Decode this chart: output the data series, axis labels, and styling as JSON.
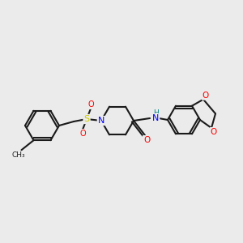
{
  "bg_color": "#ebebeb",
  "bond_color": "#1a1a1a",
  "bond_width": 1.5,
  "atom_colors": {
    "N": "#0000ff",
    "O": "#ff0000",
    "S": "#cccc00",
    "H_label": "#008080",
    "C": "#1a1a1a"
  }
}
